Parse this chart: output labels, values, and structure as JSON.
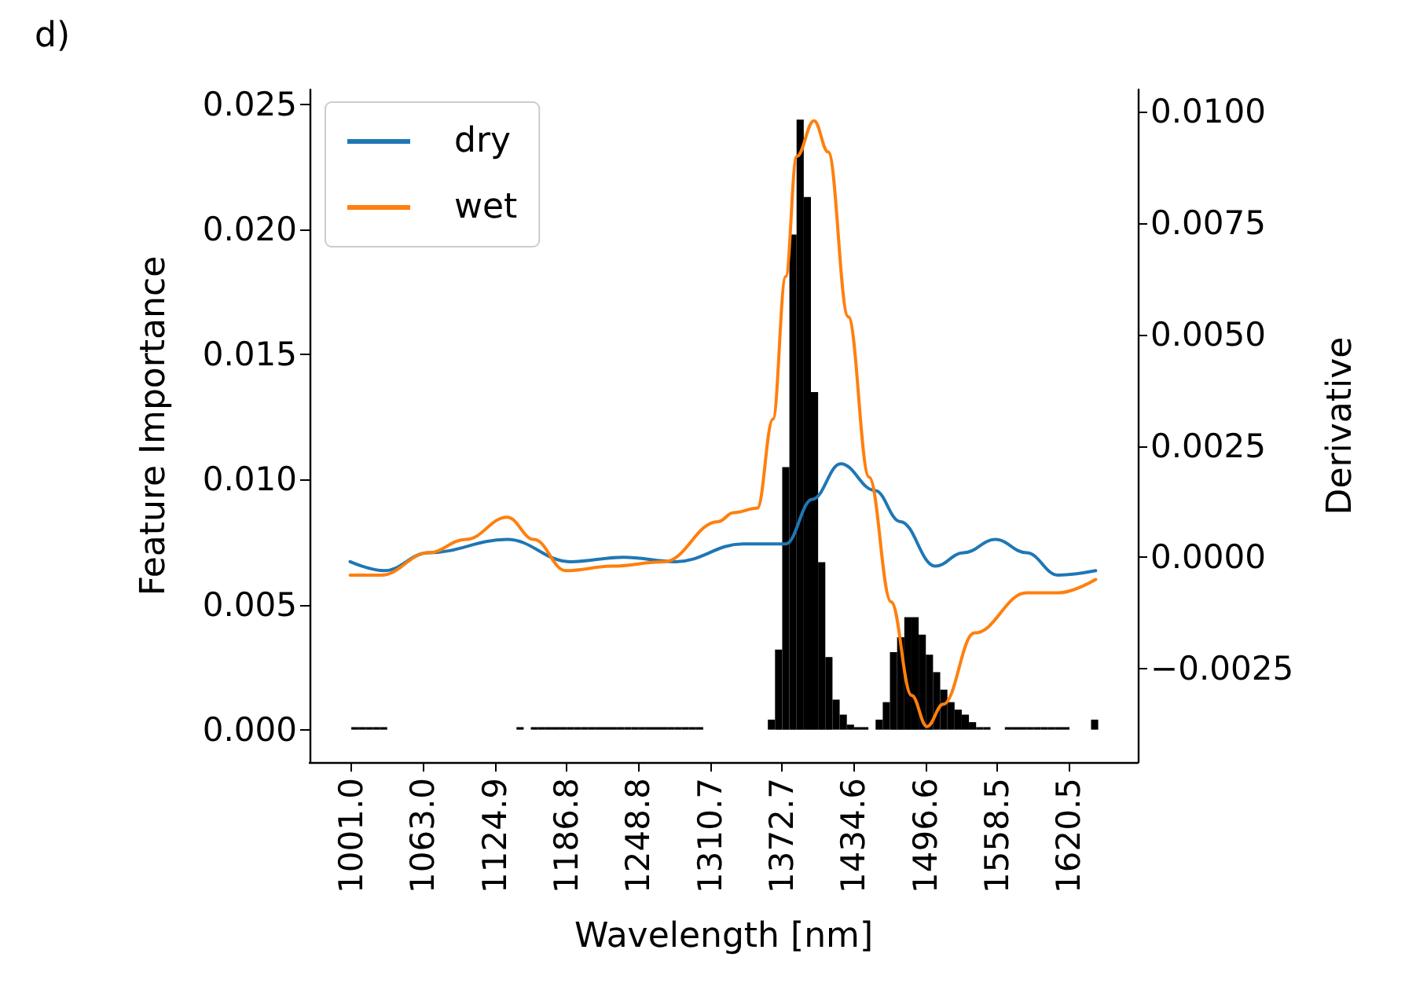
{
  "chart_data": {
    "type": "histogram",
    "xlabel": "Wavelength [nm]",
    "ylabel": "Feature Importance",
    "y2label": "Derivative",
    "annotations": [
      "d)"
    ],
    "color": "#000000",
    "bins": [
      1001.0,
      1007.2,
      1013.4,
      1019.6,
      1025.8,
      1032.0,
      1038.2,
      1044.4,
      1050.6,
      1056.8,
      1063.0,
      1069.2,
      1075.4,
      1081.6,
      1087.8,
      1094.0,
      1100.2,
      1106.4,
      1112.6,
      1118.8,
      1125.0,
      1131.2,
      1137.4,
      1143.6,
      1149.8,
      1156.0,
      1162.2,
      1168.4,
      1174.6,
      1180.8,
      1187.0,
      1193.2,
      1199.4,
      1205.6,
      1211.8,
      1218.0,
      1224.2,
      1230.4,
      1236.6,
      1242.8,
      1249.0,
      1255.2,
      1261.4,
      1267.6,
      1273.8,
      1280.0,
      1286.2,
      1292.4,
      1298.6,
      1304.8,
      1311.0,
      1317.2,
      1323.4,
      1329.6,
      1335.8,
      1342.0,
      1348.2,
      1354.4,
      1360.6,
      1366.8,
      1373.0,
      1379.2,
      1385.4,
      1391.6,
      1397.8,
      1404.0,
      1410.2,
      1416.4,
      1422.6,
      1428.8,
      1435.0,
      1441.2,
      1447.4,
      1453.6,
      1459.8,
      1466.0,
      1472.2,
      1478.4,
      1484.6,
      1490.8,
      1497.0,
      1503.2,
      1509.4,
      1515.6,
      1521.8,
      1528.0,
      1534.2,
      1540.4,
      1546.6,
      1552.8,
      1559.0,
      1565.2,
      1571.4,
      1577.6,
      1583.8,
      1590.0,
      1596.2,
      1602.4,
      1608.6,
      1614.8,
      1621.0,
      1627.2,
      1633.4,
      1639.6,
      1645.8,
      1652.0
    ],
    "values": [
      0.0001,
      0.0001,
      0.0001,
      0.0001,
      0.0001,
      0,
      0,
      0,
      0,
      0,
      0,
      0,
      0,
      0,
      0,
      0,
      0,
      0,
      0,
      0,
      0,
      0,
      0,
      0.0001,
      0,
      0.0001,
      0.0001,
      0.0001,
      0.0001,
      0.0001,
      0.0001,
      0.0001,
      0.0001,
      0.0001,
      0.0001,
      0.0001,
      0.0001,
      0.0001,
      0.0001,
      0.0001,
      0.0001,
      0.0001,
      0.0001,
      0.0001,
      0.0001,
      0.0001,
      0.0001,
      0.0001,
      0.0001,
      0,
      0,
      0,
      0,
      0,
      0,
      0,
      0,
      0,
      0.0004,
      0.0032,
      0.0105,
      0.0198,
      0.0244,
      0.0213,
      0.0135,
      0.0067,
      0.0029,
      0.0012,
      0.0006,
      0.0002,
      0.0001,
      0.0001,
      0,
      0.0004,
      0.0011,
      0.0031,
      0.0037,
      0.0045,
      0.0045,
      0.0038,
      0.003,
      0.0023,
      0.0016,
      0.0011,
      0.0008,
      0.0006,
      0.0003,
      0.0001,
      0.0001,
      0,
      0,
      0.0001,
      0.0001,
      0.0001,
      0.0001,
      0.0001,
      0.0001,
      0.0001,
      0.0001,
      0.0001,
      0,
      0,
      0,
      0.0004,
      0
    ],
    "series": [
      {
        "name": "dry",
        "type": "line",
        "axis": "y2",
        "color": "#1f77b4",
        "x": [
          1000,
          1029.5,
          1067.6,
          1135.5,
          1189.9,
          1236,
          1281,
          1339,
          1376,
          1399,
          1423.5,
          1453,
          1475,
          1505,
          1529.5,
          1557,
          1584,
          1611,
          1643.6
        ],
        "values": [
          -0.0001,
          -0.0003,
          0.0001,
          0.0004,
          -0.0001,
          0.0,
          -0.0001,
          0.0003,
          0.0003,
          0.0013,
          0.0021,
          0.0015,
          0.0008,
          -0.0002,
          0.0001,
          0.0004,
          0.0001,
          -0.0004,
          -0.0003
        ]
      },
      {
        "name": "wet",
        "type": "line",
        "axis": "y2",
        "color": "#ff7f0e",
        "x": [
          1000,
          1027,
          1067.6,
          1100,
          1135.5,
          1158.6,
          1186,
          1226.5,
          1271,
          1317.6,
          1331,
          1351.5,
          1365,
          1376,
          1385.5,
          1400.5,
          1412.7,
          1430,
          1448,
          1467,
          1484.7,
          1498,
          1512,
          1539,
          1584,
          1611,
          1643.6
        ],
        "values": [
          -0.0004,
          -0.0004,
          0.0001,
          0.0004,
          0.0009,
          0.0004,
          -0.0003,
          -0.0002,
          -0.0001,
          0.0008,
          0.001,
          0.0011,
          0.0031,
          0.0063,
          0.009,
          0.0098,
          0.0091,
          0.0054,
          0.0018,
          -0.001,
          -0.0031,
          -0.0038,
          -0.0033,
          -0.0017,
          -0.0008,
          -0.0008,
          -0.0005
        ]
      }
    ],
    "xlim": [
      965,
      1680
    ],
    "xticks": [
      {
        "value": 1001,
        "label": "1001.0"
      },
      {
        "value": 1063,
        "label": "1063.0"
      },
      {
        "value": 1124.9,
        "label": "1124.9"
      },
      {
        "value": 1186.8,
        "label": "1186.8"
      },
      {
        "value": 1248.8,
        "label": "1248.8"
      },
      {
        "value": 1310.7,
        "label": "1310.7"
      },
      {
        "value": 1372.7,
        "label": "1372.7"
      },
      {
        "value": 1434.6,
        "label": "1434.6"
      },
      {
        "value": 1496.6,
        "label": "1496.6"
      },
      {
        "value": 1558.5,
        "label": "1558.5"
      },
      {
        "value": 1620.5,
        "label": "1620.5"
      }
    ],
    "ylim": [
      -0.0013,
      0.0256
    ],
    "yticks": [
      {
        "value": 0,
        "label": "0.000"
      },
      {
        "value": 0.005,
        "label": "0.005"
      },
      {
        "value": 0.01,
        "label": "0.010"
      },
      {
        "value": 0.015,
        "label": "0.015"
      },
      {
        "value": 0.02,
        "label": "0.020"
      },
      {
        "value": 0.025,
        "label": "0.025"
      }
    ],
    "y2lim": [
      -0.0046,
      0.0105
    ],
    "y2ticks": [
      {
        "value": -0.0025,
        "label": "−0.0025"
      },
      {
        "value": 0,
        "label": "0.0000"
      },
      {
        "value": 0.0025,
        "label": "0.0025"
      },
      {
        "value": 0.005,
        "label": "0.0050"
      },
      {
        "value": 0.0075,
        "label": "0.0075"
      },
      {
        "value": 0.01,
        "label": "0.0100"
      }
    ],
    "legend": "top left",
    "grid": false
  }
}
